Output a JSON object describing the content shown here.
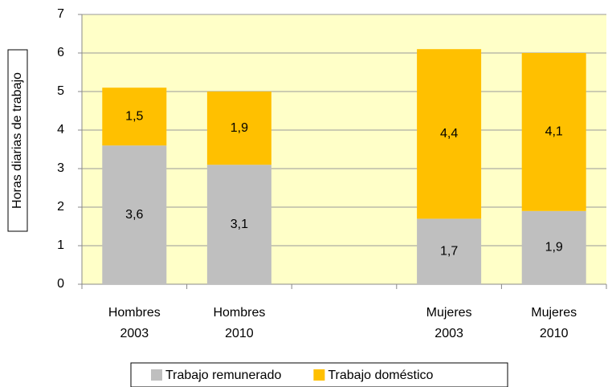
{
  "chart_data": {
    "type": "stacked_bar",
    "y_label": "Horas diarias de trabajo",
    "categories": [
      [
        "Hombres",
        "2003"
      ],
      [
        "Hombres",
        "2010"
      ],
      null,
      [
        "Mujeres",
        "2003"
      ],
      [
        "Mujeres",
        "2010"
      ]
    ],
    "series": [
      {
        "name": "Trabajo remunerado",
        "color": "#bfbfbf",
        "values": [
          3.6,
          3.1,
          null,
          1.7,
          1.9
        ],
        "value_labels": [
          "3,6",
          "3,1",
          null,
          "1,7",
          "1,9"
        ]
      },
      {
        "name": "Trabajo doméstico",
        "color": "#ffc000",
        "values": [
          1.5,
          1.9,
          null,
          4.4,
          4.1
        ],
        "value_labels": [
          "1,5",
          "1,9",
          null,
          "4,4",
          "4,1"
        ]
      }
    ],
    "ylim": [
      0,
      7
    ],
    "yticks": [
      0,
      1,
      2,
      3,
      4,
      5,
      6,
      7
    ],
    "grid": true,
    "plot_background": "#ffffc8"
  }
}
